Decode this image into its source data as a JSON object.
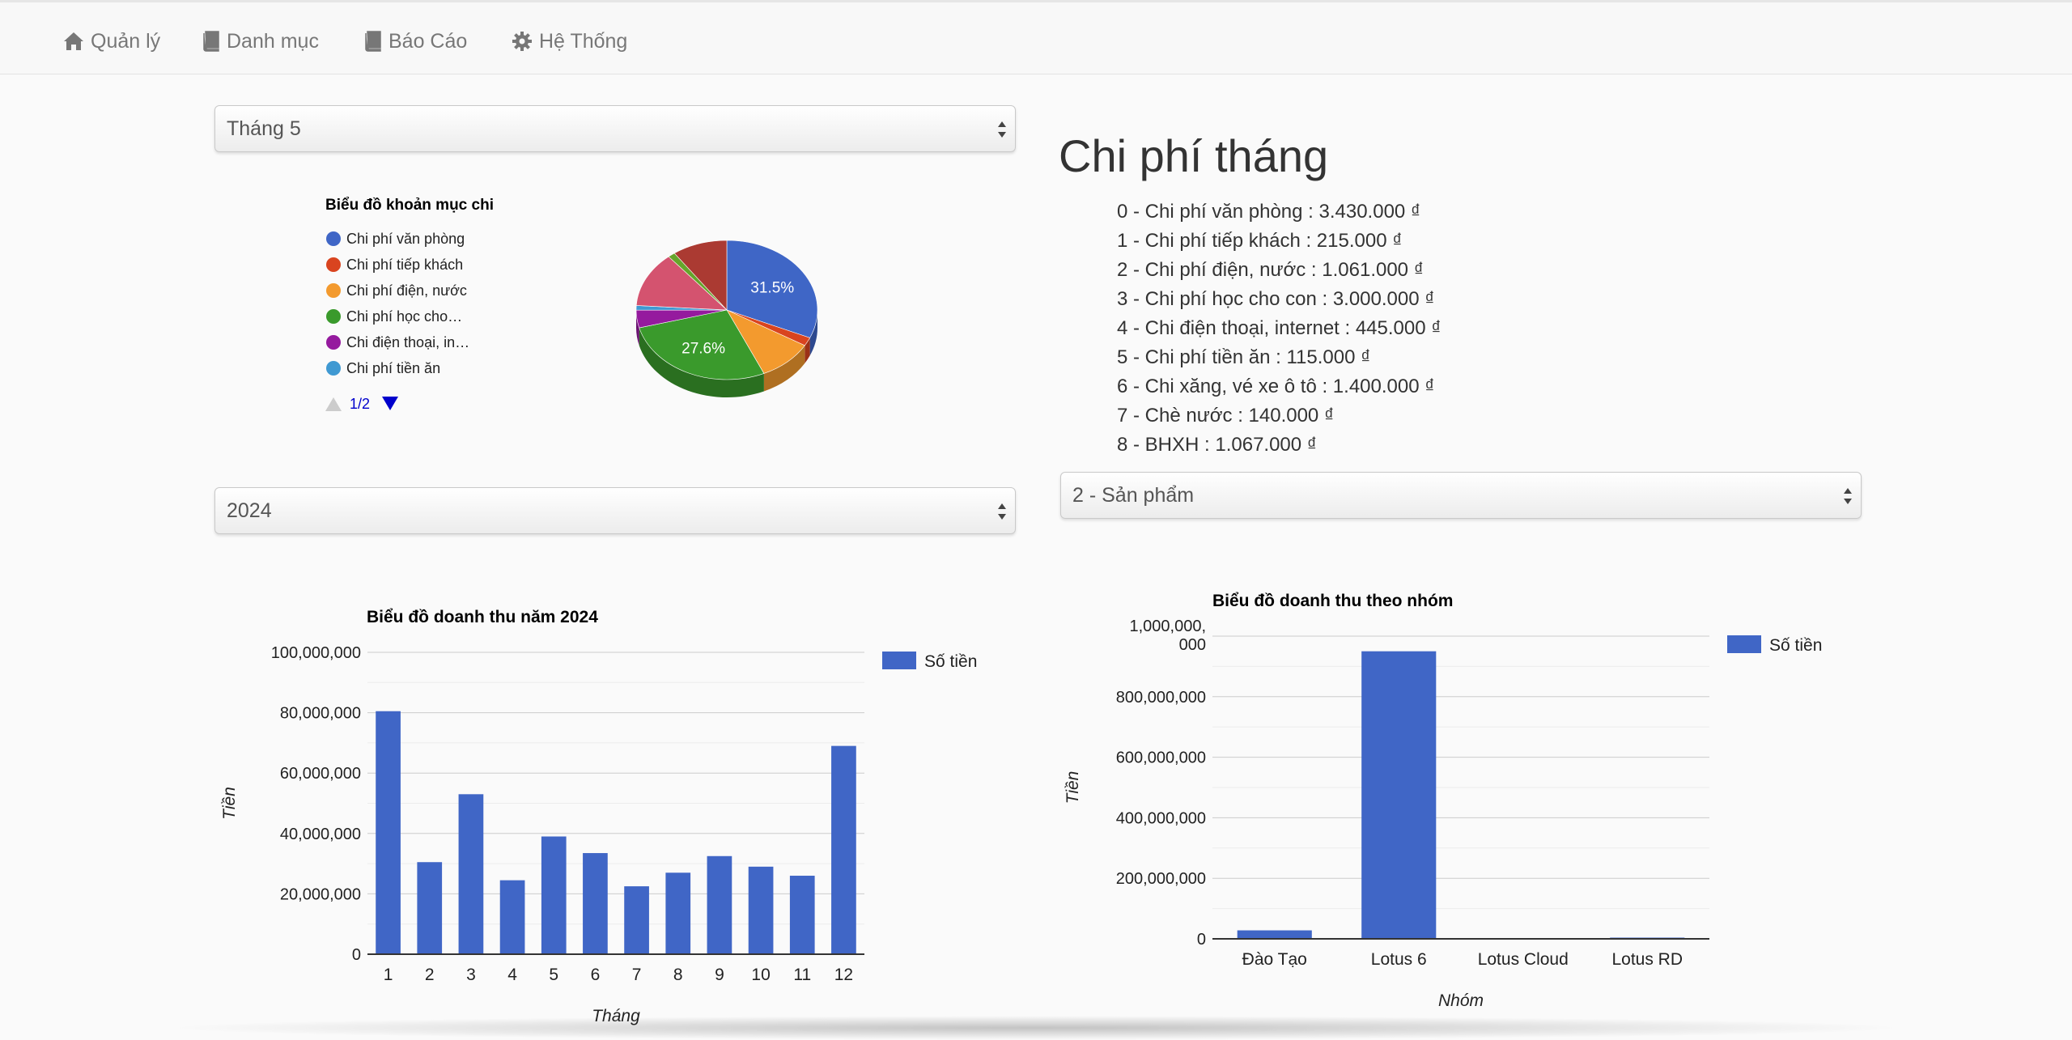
{
  "nav": {
    "items": [
      {
        "label": "Quản lý",
        "icon": "home-icon"
      },
      {
        "label": "Danh mục",
        "icon": "book-icon"
      },
      {
        "label": "Báo Cáo",
        "icon": "book-icon"
      },
      {
        "label": "Hệ Thống",
        "icon": "gear-icon"
      }
    ]
  },
  "filters": {
    "month_select": "Tháng 5",
    "year_select": "2024",
    "group_select": "2 - Sản phẩm"
  },
  "monthly_expenses": {
    "title": "Chi phí tháng",
    "items": [
      "0 - Chi phí văn phòng : 3.430.000 ₫",
      "1 - Chi phí tiếp khách : 215.000 ₫",
      "2 - Chi phí điện, nước : 1.061.000 ₫",
      "3 - Chi phí học cho con : 3.000.000 ₫",
      "4 - Chi điện thoại, internet : 445.000 ₫",
      "5 - Chi phí tiền ăn : 115.000 ₫",
      "6 - Chi xăng, vé xe ô tô : 1.400.000 ₫",
      "7 - Chè nước : 140.000 ₫",
      "8 - BHXH : 1.067.000 ₫"
    ]
  },
  "colors": {
    "accent_blue": "#4066c6",
    "nav_text": "#777777"
  },
  "chart_data": [
    {
      "type": "pie",
      "title": "Biểu đồ khoản mục chi",
      "legend_position": "left",
      "legend_page": "1/2",
      "legend": [
        {
          "name": "Chi phí văn phòng",
          "color": "#3f66c6"
        },
        {
          "name": "Chi phí tiếp khách",
          "color": "#d9441f"
        },
        {
          "name": "Chi phí điện, nước",
          "color": "#f39a2e"
        },
        {
          "name": "Chi phí học cho…",
          "color": "#3a9a2c"
        },
        {
          "name": "Chi điện thoại, in…",
          "color": "#951a9e"
        },
        {
          "name": "Chi phí tiền ăn",
          "color": "#3f99d2"
        }
      ],
      "slices": [
        {
          "name": "Chi phí văn phòng",
          "value": 3430000,
          "color": "#3f66c6",
          "label": "31.5%"
        },
        {
          "name": "Chi phí tiếp khách",
          "value": 215000,
          "color": "#d9441f",
          "label": ""
        },
        {
          "name": "Chi phí điện, nước",
          "value": 1061000,
          "color": "#f39a2e",
          "label": ""
        },
        {
          "name": "Chi phí học cho con",
          "value": 3000000,
          "color": "#3a9a2c",
          "label": "27.6%"
        },
        {
          "name": "Chi điện thoại, internet",
          "value": 445000,
          "color": "#951a9e",
          "label": ""
        },
        {
          "name": "Chi phí tiền ăn",
          "value": 115000,
          "color": "#3f99d2",
          "label": ""
        },
        {
          "name": "Chi xăng, vé xe ô tô",
          "value": 1400000,
          "color": "#d4536f",
          "label": ""
        },
        {
          "name": "Chè nước",
          "value": 140000,
          "color": "#65a52b",
          "label": ""
        },
        {
          "name": "BHXH",
          "value": 1067000,
          "color": "#ab3a32",
          "label": ""
        }
      ]
    },
    {
      "type": "bar",
      "title": "Biểu đồ doanh thu năm 2024",
      "xlabel": "Tháng",
      "ylabel": "Tiền",
      "legend_position": "right",
      "ylim": [
        0,
        100000000
      ],
      "yticks": [
        "0",
        "20,000,000",
        "40,000,000",
        "60,000,000",
        "80,000,000",
        "100,000,000"
      ],
      "categories": [
        "1",
        "2",
        "3",
        "4",
        "5",
        "6",
        "7",
        "8",
        "9",
        "10",
        "11",
        "12"
      ],
      "series": [
        {
          "name": "Số tiền",
          "color": "#4066c6",
          "values": [
            80500000,
            30500000,
            53000000,
            24500000,
            39000000,
            33500000,
            22500000,
            27000000,
            32500000,
            29000000,
            26000000,
            69000000
          ]
        }
      ]
    },
    {
      "type": "bar",
      "title": "Biểu đồ doanh thu theo nhóm",
      "xlabel": "Nhóm",
      "ylabel": "Tiền",
      "legend_position": "right",
      "ylim": [
        0,
        1000000000
      ],
      "yticks": [
        "0",
        "200,000,000",
        "400,000,000",
        "600,000,000",
        "800,000,000",
        "1,000,000,\n000"
      ],
      "categories": [
        "Đào Tạo",
        "Lotus 6",
        "Lotus Cloud",
        "Lotus RD"
      ],
      "series": [
        {
          "name": "Số tiền",
          "color": "#4066c6",
          "values": [
            28000000,
            950000000,
            2000000,
            4000000
          ]
        }
      ]
    }
  ]
}
